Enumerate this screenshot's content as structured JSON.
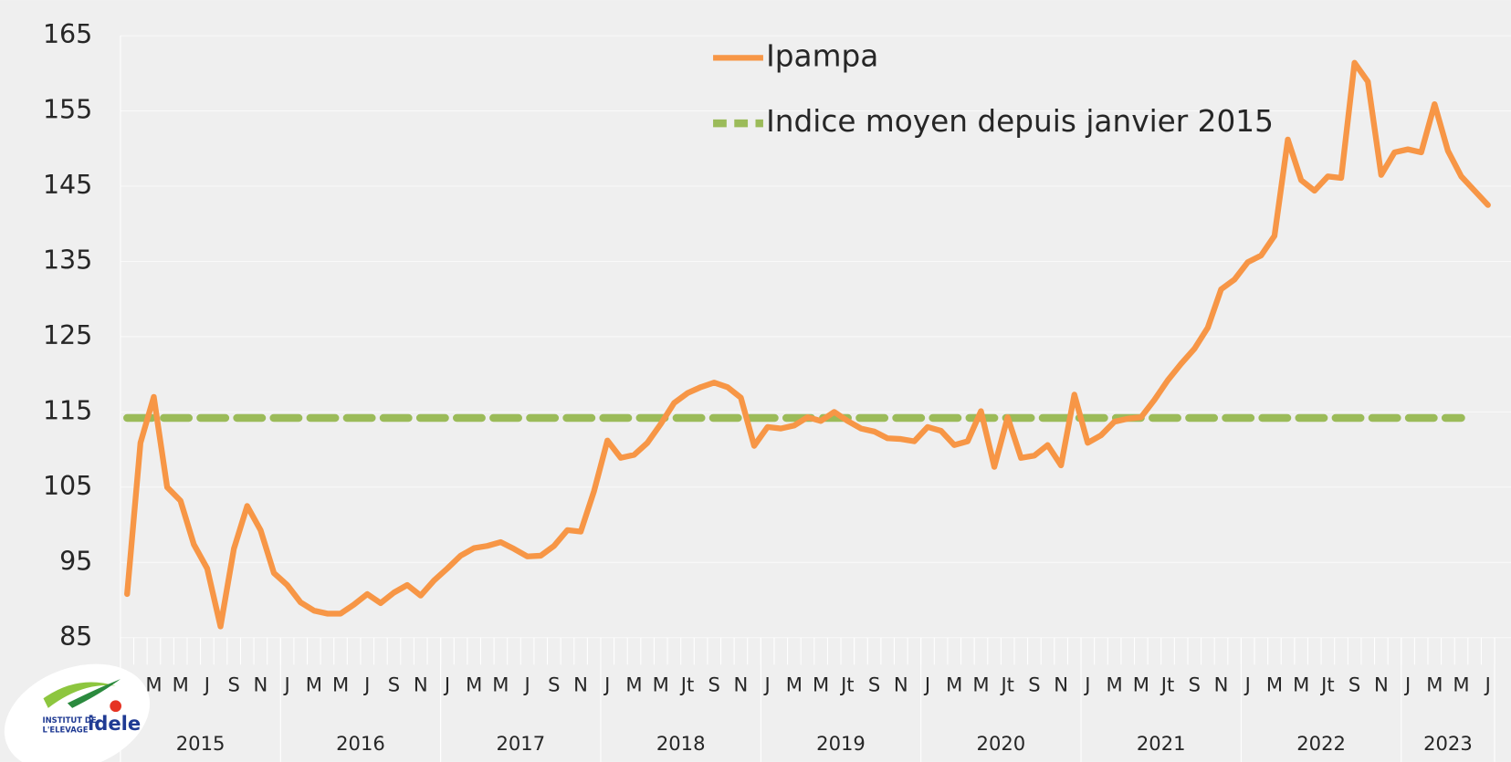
{
  "chart_data": {
    "type": "line",
    "categories": [
      "J",
      null,
      "M",
      null,
      "M",
      null,
      "J",
      null,
      "S",
      null,
      "N",
      null,
      "J",
      null,
      "M",
      null,
      "M",
      null,
      "J",
      null,
      "S",
      null,
      "N",
      null,
      "J",
      null,
      "M",
      null,
      "M",
      null,
      "J",
      null,
      "S",
      null,
      "N",
      null,
      "J",
      null,
      "M",
      null,
      "M",
      null,
      "Jt",
      null,
      "S",
      null,
      "N",
      null,
      "J",
      null,
      "M",
      null,
      "M",
      null,
      "Jt",
      null,
      "S",
      null,
      "N",
      null,
      "J",
      null,
      "M",
      null,
      "M",
      null,
      "Jt",
      null,
      "S",
      null,
      "N",
      null,
      "J",
      null,
      "M",
      null,
      "M",
      null,
      "Jt",
      null,
      "S",
      null,
      "N",
      null,
      "J",
      null,
      "M",
      null,
      "M",
      null,
      "Jt",
      null,
      "S",
      null,
      "N",
      null,
      "J",
      null,
      "M",
      null,
      "M",
      null,
      "J"
    ],
    "year_groups": [
      "2015",
      "2016",
      "2017",
      "2018",
      "2019",
      "2020",
      "2021",
      "2022",
      "2023"
    ],
    "series": [
      {
        "name": "Ipampa",
        "color": "#f79646",
        "style": "solid",
        "values": [
          90.8,
          110.9,
          117,
          105,
          103.2,
          97.4,
          94.2,
          86.5,
          96.8,
          102.5,
          99.3,
          93.6,
          92,
          89.7,
          88.6,
          88.2,
          88.2,
          89.4,
          90.8,
          89.6,
          91,
          92,
          90.6,
          92.6,
          94.2,
          95.9,
          96.9,
          97.2,
          97.7,
          96.8,
          95.8,
          95.9,
          97.2,
          99.3,
          99.1,
          104.5,
          111.2,
          108.9,
          109.3,
          110.9,
          113.4,
          116.2,
          117.5,
          118.3,
          118.9,
          118.3,
          116.9,
          110.5,
          113,
          112.8,
          113.2,
          114.3,
          113.8,
          115,
          113.8,
          112.8,
          112.4,
          111.5,
          111.4,
          111.1,
          113,
          112.5,
          110.6,
          111.1,
          115.1,
          107.7,
          114.3,
          108.9,
          109.2,
          110.6,
          107.9,
          117.3,
          110.9,
          111.9,
          113.7,
          114.1,
          114.3,
          116.6,
          119.2,
          121.4,
          123.4,
          126.2,
          131.3,
          132.6,
          134.9,
          135.8,
          138.4,
          151.2,
          145.8,
          144.4,
          146.3,
          146.1,
          161.4,
          158.9,
          146.5,
          149.5,
          149.9,
          149.5,
          155.9,
          149.7,
          146.3,
          144.4,
          142.5
        ]
      },
      {
        "name": "Indice moyen depuis janvier 2015",
        "color": "#9bbb59",
        "style": "dashed",
        "values": [
          114.2,
          114.2,
          114.2,
          114.2,
          114.2,
          114.2,
          114.2,
          114.2,
          114.2,
          114.2,
          114.2,
          114.2,
          114.2,
          114.2,
          114.2,
          114.2,
          114.2,
          114.2,
          114.2,
          114.2,
          114.2,
          114.2,
          114.2,
          114.2,
          114.2,
          114.2,
          114.2,
          114.2,
          114.2,
          114.2,
          114.2,
          114.2,
          114.2,
          114.2,
          114.2,
          114.2,
          114.2,
          114.2,
          114.2,
          114.2,
          114.2,
          114.2,
          114.2,
          114.2,
          114.2,
          114.2,
          114.2,
          114.2,
          114.2,
          114.2,
          114.2,
          114.2,
          114.2,
          114.2,
          114.2,
          114.2,
          114.2,
          114.2,
          114.2,
          114.2,
          114.2,
          114.2,
          114.2,
          114.2,
          114.2,
          114.2,
          114.2,
          114.2,
          114.2,
          114.2,
          114.2,
          114.2,
          114.2,
          114.2,
          114.2,
          114.2,
          114.2,
          114.2,
          114.2,
          114.2,
          114.2,
          114.2,
          114.2,
          114.2,
          114.2,
          114.2,
          114.2,
          114.2,
          114.2,
          114.2,
          114.2,
          114.2,
          114.2,
          114.2,
          114.2,
          114.2,
          114.2,
          114.2,
          114.2,
          114.2,
          114.2,
          null,
          null
        ]
      }
    ],
    "ylim": [
      85,
      165
    ],
    "yticks": [
      85,
      95,
      105,
      115,
      125,
      135,
      145,
      155,
      165
    ],
    "grid": true,
    "legend": "top"
  },
  "logo": {
    "line1": "INSTITUT DE",
    "line2": "L'ELEVAGE",
    "name": "idele"
  }
}
